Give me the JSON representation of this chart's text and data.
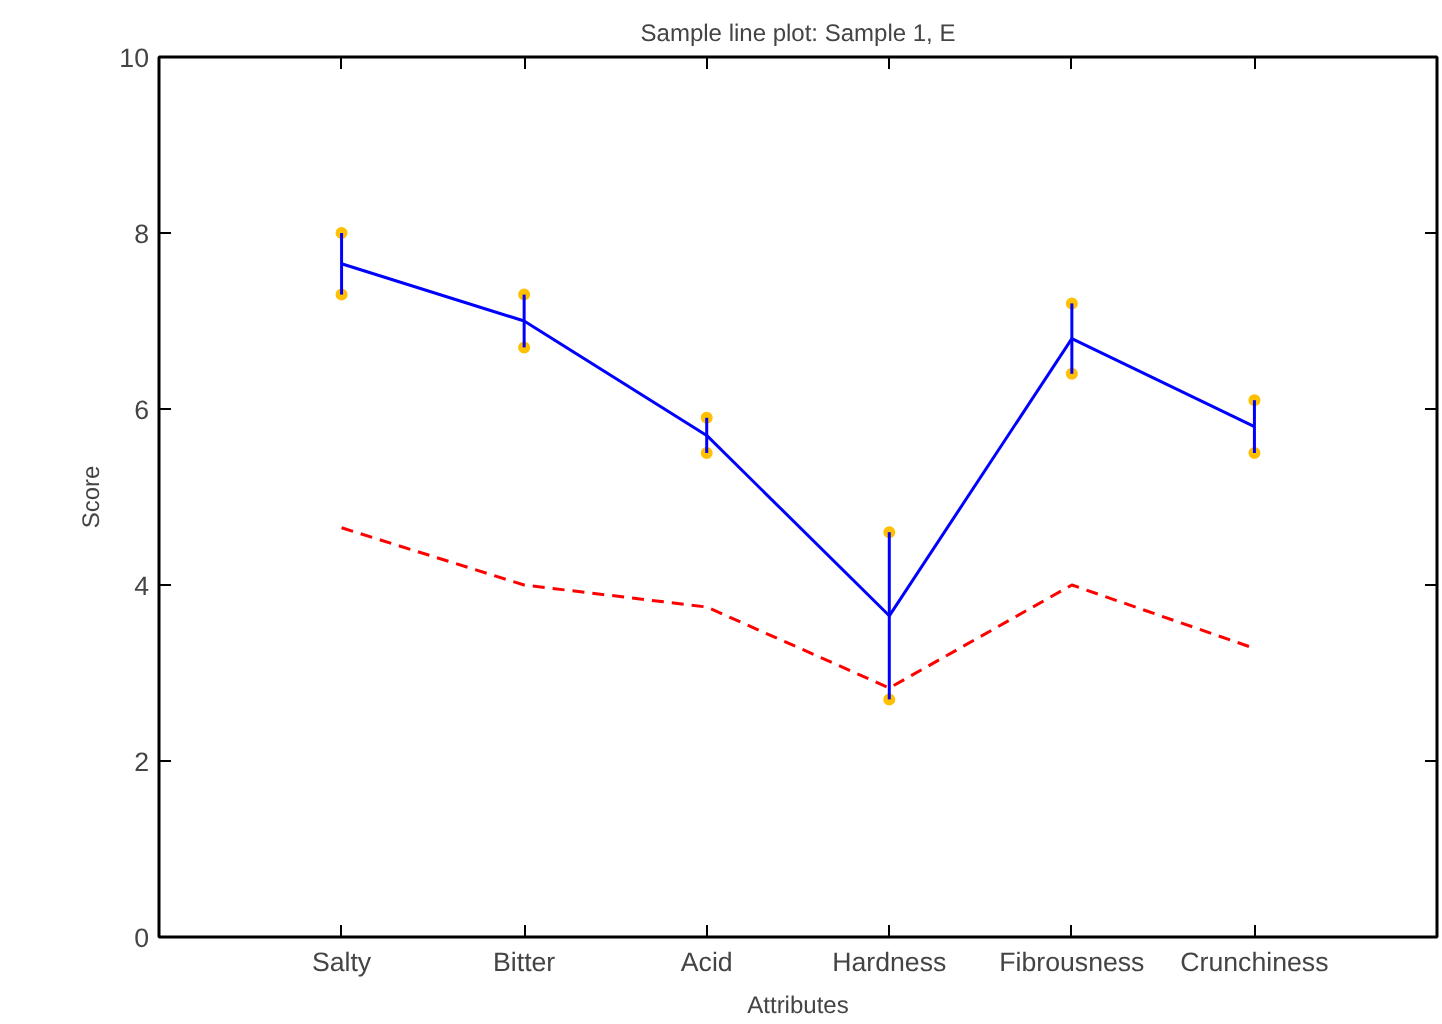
{
  "chart_data": {
    "type": "line",
    "title": "Sample line plot: Sample 1, E",
    "xlabel": "Attributes",
    "ylabel": "Score",
    "categories": [
      "Salty",
      "Bitter",
      "Acid",
      "Hardness",
      "Fibrousness",
      "Crunchiness"
    ],
    "series": [
      {
        "color": "#0000ff",
        "values": [
          7.65,
          7.0,
          5.7,
          3.65,
          6.8,
          5.8
        ],
        "errors": [
          [
            7.3,
            8.0
          ],
          [
            6.7,
            7.3
          ],
          [
            5.5,
            5.9
          ],
          [
            2.7,
            4.6
          ],
          [
            6.4,
            7.2
          ],
          [
            5.5,
            6.1
          ]
        ],
        "line_style": "solid"
      },
      {
        "color": "#ff0000",
        "values": [
          4.65,
          4.0,
          3.75,
          2.83,
          4.0,
          3.28
        ],
        "line_style": "dashed"
      },
      {
        "type": "scatter",
        "color": "#ffc000",
        "marker": "circle",
        "x": [
          "Salty",
          "Salty",
          "Bitter",
          "Bitter",
          "Acid",
          "Acid",
          "Hardness",
          "Hardness",
          "Fibrousness",
          "Fibrousness",
          "Crunchiness",
          "Crunchiness"
        ],
        "values": [
          8.0,
          7.3,
          7.3,
          6.7,
          5.9,
          5.5,
          4.6,
          2.7,
          7.2,
          6.4,
          6.1,
          5.5
        ]
      }
    ],
    "ylim": [
      0,
      10
    ],
    "yticks": [
      0,
      2,
      4,
      6,
      8,
      10
    ],
    "grid": false
  }
}
